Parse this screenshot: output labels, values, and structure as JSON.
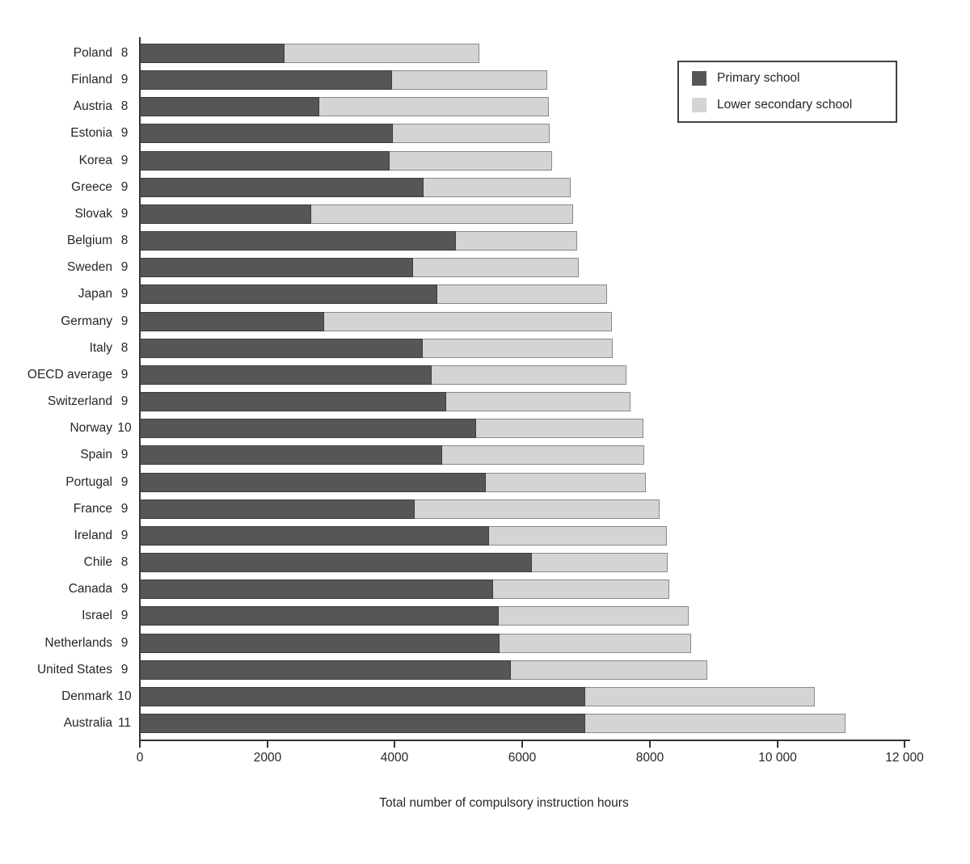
{
  "chart_data": {
    "type": "bar",
    "orientation": "horizontal",
    "stacked": true,
    "title": "",
    "xlabel": "Total number of compulsory instruction hours",
    "ylabel": "",
    "xlim": [
      0,
      12000
    ],
    "grid": false,
    "legend_position": "top-right",
    "legend": [
      {
        "label": "Primary school",
        "color": "#565656"
      },
      {
        "label": "Lower secondary school",
        "color": "#d4d4d4"
      }
    ],
    "x_ticks": [
      {
        "value": 0,
        "label": "0"
      },
      {
        "value": 2000,
        "label": "2000"
      },
      {
        "value": 4000,
        "label": "4000"
      },
      {
        "value": 6000,
        "label": "6000"
      },
      {
        "value": 8000,
        "label": "8000"
      },
      {
        "value": 10000,
        "label": "10 000"
      },
      {
        "value": 12000,
        "label": "12 000"
      }
    ],
    "series_names": [
      "Primary school",
      "Lower secondary school"
    ],
    "rows": [
      {
        "country": "Poland",
        "years": "8",
        "primary": 2270,
        "lower_secondary": 3060
      },
      {
        "country": "Finland",
        "years": "9",
        "primary": 3960,
        "lower_secondary": 2430
      },
      {
        "country": "Austria",
        "years": "8",
        "primary": 2820,
        "lower_secondary": 3600
      },
      {
        "country": "Estonia",
        "years": "9",
        "primary": 3970,
        "lower_secondary": 2460
      },
      {
        "country": "Korea",
        "years": "9",
        "primary": 3915,
        "lower_secondary": 2545
      },
      {
        "country": "Greece",
        "years": "9",
        "primary": 4450,
        "lower_secondary": 2305
      },
      {
        "country": "Slovak",
        "years": "9",
        "primary": 2690,
        "lower_secondary": 4105
      },
      {
        "country": "Belgium",
        "years": "8",
        "primary": 4955,
        "lower_secondary": 1900
      },
      {
        "country": "Sweden",
        "years": "9",
        "primary": 4285,
        "lower_secondary": 2605
      },
      {
        "country": "Japan",
        "years": "9",
        "primary": 4670,
        "lower_secondary": 2665
      },
      {
        "country": "Germany",
        "years": "9",
        "primary": 2885,
        "lower_secondary": 4520
      },
      {
        "country": "Italy",
        "years": "8",
        "primary": 4440,
        "lower_secondary": 2985
      },
      {
        "country": "OECD average",
        "years": "9",
        "primary": 4580,
        "lower_secondary": 3050
      },
      {
        "country": "Switzerland",
        "years": "9",
        "primary": 4800,
        "lower_secondary": 2885
      },
      {
        "country": "Norway",
        "years": "10",
        "primary": 5270,
        "lower_secondary": 2625
      },
      {
        "country": "Spain",
        "years": "9",
        "primary": 4740,
        "lower_secondary": 3175
      },
      {
        "country": "Portugal",
        "years": "9",
        "primary": 5425,
        "lower_secondary": 2505
      },
      {
        "country": "France",
        "years": "9",
        "primary": 4310,
        "lower_secondary": 3845
      },
      {
        "country": "Ireland",
        "years": "9",
        "primary": 5475,
        "lower_secondary": 2790
      },
      {
        "country": "Chile",
        "years": "8",
        "primary": 6145,
        "lower_secondary": 2135
      },
      {
        "country": "Canada",
        "years": "9",
        "primary": 5535,
        "lower_secondary": 2770
      },
      {
        "country": "Israel",
        "years": "9",
        "primary": 5625,
        "lower_secondary": 2975
      },
      {
        "country": "Netherlands",
        "years": "9",
        "primary": 5640,
        "lower_secondary": 3010
      },
      {
        "country": "United States",
        "years": "9",
        "primary": 5825,
        "lower_secondary": 3085
      },
      {
        "country": "Denmark",
        "years": "10",
        "primary": 6985,
        "lower_secondary": 3600
      },
      {
        "country": "Australia",
        "years": "11",
        "primary": 6985,
        "lower_secondary": 4085
      }
    ]
  }
}
